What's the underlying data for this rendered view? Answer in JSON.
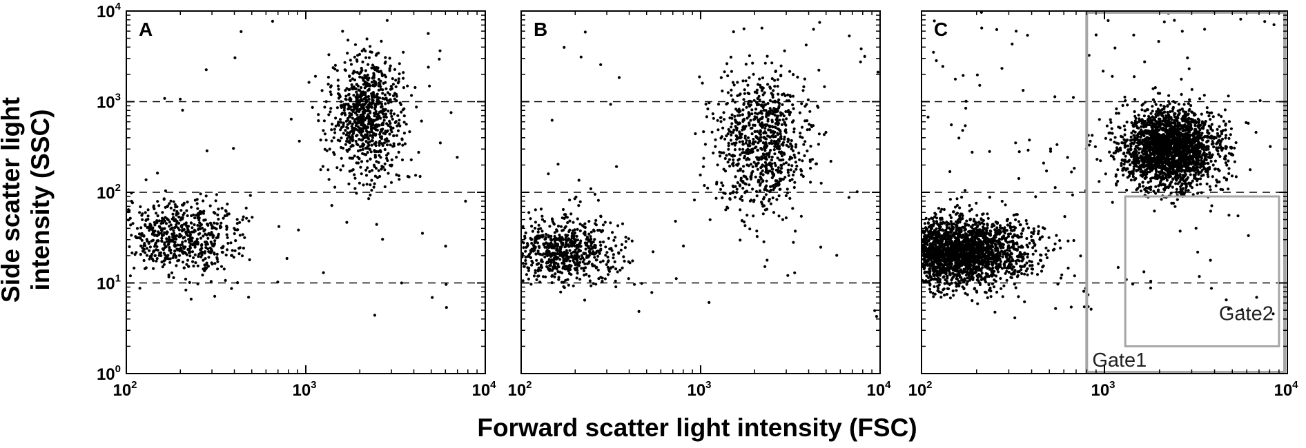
{
  "figure": {
    "xlabel": "Forward scatter light intensity (FSC)",
    "ylabel_line1": "Side scatter light",
    "ylabel_line2": "intensity (SSC)",
    "x_ticks": [
      {
        "base": "10",
        "exp": "2"
      },
      {
        "base": "10",
        "exp": "3"
      },
      {
        "base": "10",
        "exp": "4"
      }
    ],
    "y_ticks": [
      {
        "base": "10",
        "exp": "0"
      },
      {
        "base": "10",
        "exp": "1"
      },
      {
        "base": "10",
        "exp": "2"
      },
      {
        "base": "10",
        "exp": "3"
      },
      {
        "base": "10",
        "exp": "4"
      }
    ],
    "colors": {
      "points": "#000000",
      "gate": "#a6a6a6",
      "gridline": "#000000"
    }
  },
  "chart_data": [
    {
      "type": "scatter",
      "panel": "A",
      "xscale": "log",
      "yscale": "log",
      "xlim": [
        100,
        10000
      ],
      "ylim": [
        1,
        10000
      ],
      "xlabel": "Forward scatter light intensity (FSC)",
      "ylabel": "Side scatter light intensity (SSC)",
      "dashed_gridlines_y": [
        10,
        100,
        1000
      ],
      "clusters": [
        {
          "center": [
            200,
            32
          ],
          "spread_log10": [
            0.18,
            0.2
          ],
          "count": 650
        },
        {
          "center": [
            2200,
            700
          ],
          "spread_log10": [
            0.1,
            0.33
          ],
          "count": 850
        }
      ],
      "gates": []
    },
    {
      "type": "scatter",
      "panel": "B",
      "xscale": "log",
      "yscale": "log",
      "xlim": [
        100,
        10000
      ],
      "ylim": [
        1,
        10000
      ],
      "xlabel": "Forward scatter light intensity (FSC)",
      "ylabel": "Side scatter light intensity (SSC)",
      "dashed_gridlines_y": [
        10,
        100,
        1000
      ],
      "clusters": [
        {
          "center": [
            180,
            22
          ],
          "spread_log10": [
            0.16,
            0.18
          ],
          "count": 700
        },
        {
          "center": [
            2200,
            350
          ],
          "spread_log10": [
            0.13,
            0.4
          ],
          "count": 850
        }
      ],
      "gates": []
    },
    {
      "type": "scatter",
      "panel": "C",
      "xscale": "log",
      "yscale": "log",
      "xlim": [
        100,
        10000
      ],
      "ylim": [
        1,
        10000
      ],
      "xlabel": "Forward scatter light intensity (FSC)",
      "ylabel": "Side scatter light intensity (SSC)",
      "dashed_gridlines_y": [
        10,
        100,
        1000
      ],
      "clusters": [
        {
          "center": [
            150,
            22
          ],
          "spread_log10": [
            0.2,
            0.18
          ],
          "count": 2600
        },
        {
          "center": [
            2300,
            300
          ],
          "spread_log10": [
            0.13,
            0.22
          ],
          "count": 2300
        }
      ],
      "gates": [
        {
          "label": "Gate1",
          "x": [
            800,
            10000
          ],
          "y": [
            1,
            10000
          ]
        },
        {
          "label": "Gate2",
          "x": [
            1300,
            9000
          ],
          "y": [
            2,
            90
          ]
        }
      ]
    }
  ]
}
